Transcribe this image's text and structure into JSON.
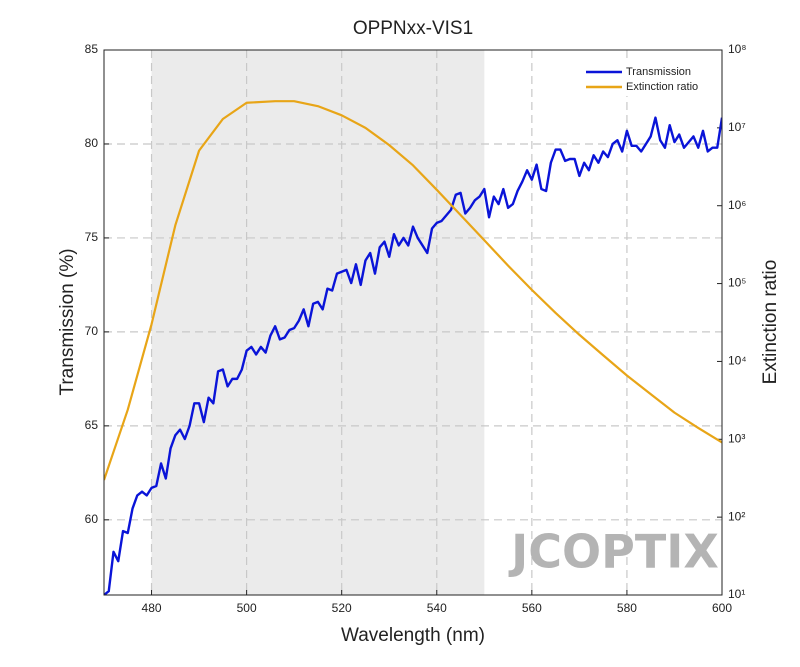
{
  "chart_data": {
    "type": "line",
    "title": "OPPNxx-VIS1",
    "x_label": "Wavelength (nm)",
    "y_label": "Transmission (%)",
    "y2_label": "Extinction ratio",
    "watermark": "JCOPTIX",
    "xlim": [
      470,
      600
    ],
    "xticks": [
      480,
      500,
      520,
      540,
      560,
      580,
      600
    ],
    "ylim": [
      56,
      85
    ],
    "yticks": [
      60,
      65,
      70,
      75,
      80,
      85
    ],
    "y2lim": [
      10,
      100000000
    ],
    "y2log": true,
    "y2ticks": [
      {
        "value": 10,
        "label": "10¹"
      },
      {
        "value": 100,
        "label": "10²"
      },
      {
        "value": 1000,
        "label": "10³"
      },
      {
        "value": 10000,
        "label": "10⁴"
      },
      {
        "value": 100000,
        "label": "10⁵"
      },
      {
        "value": 1000000,
        "label": "10⁶"
      },
      {
        "value": 10000000,
        "label": "10⁷"
      },
      {
        "value": 100000000,
        "label": "10⁸"
      }
    ],
    "grid": true,
    "legend": "upper right",
    "shade": [
      480,
      550
    ],
    "series": [
      {
        "name": "Transmission",
        "color": "#0a14d8",
        "x": [
          470,
          471,
          472,
          473,
          474,
          475,
          476,
          477,
          478,
          479,
          480,
          481,
          482,
          483,
          484,
          485,
          486,
          487,
          488,
          489,
          490,
          491,
          492,
          493,
          494,
          495,
          496,
          497,
          498,
          499,
          500,
          501,
          502,
          503,
          504,
          505,
          506,
          507,
          508,
          509,
          510,
          511,
          512,
          513,
          514,
          515,
          516,
          517,
          518,
          519,
          520,
          521,
          522,
          523,
          524,
          525,
          526,
          527,
          528,
          529,
          530,
          531,
          532,
          533,
          534,
          535,
          536,
          537,
          538,
          539,
          540,
          541,
          542,
          543,
          544,
          545,
          546,
          547,
          548,
          549,
          550,
          551,
          552,
          553,
          554,
          555,
          556,
          557,
          558,
          559,
          560,
          561,
          562,
          563,
          564,
          565,
          566,
          567,
          568,
          569,
          570,
          571,
          572,
          573,
          574,
          575,
          576,
          577,
          578,
          579,
          580,
          581,
          582,
          583,
          584,
          585,
          586,
          587,
          588,
          589,
          590,
          591,
          592,
          593,
          594,
          595,
          596,
          597,
          598,
          599,
          600
        ],
        "values": [
          56.0,
          56.2,
          58.3,
          57.8,
          59.4,
          59.3,
          60.6,
          61.3,
          61.5,
          61.3,
          61.7,
          61.8,
          63.0,
          62.2,
          63.8,
          64.5,
          64.8,
          64.3,
          65.0,
          66.2,
          66.2,
          65.2,
          66.5,
          66.2,
          67.9,
          68.0,
          67.1,
          67.5,
          67.5,
          68.0,
          69.0,
          69.2,
          68.8,
          69.2,
          68.9,
          69.8,
          70.3,
          69.6,
          69.7,
          70.1,
          70.2,
          70.6,
          71.2,
          70.3,
          71.5,
          71.6,
          71.2,
          72.3,
          72.2,
          73.1,
          73.2,
          73.3,
          72.6,
          73.6,
          72.5,
          73.8,
          74.2,
          73.1,
          74.5,
          74.8,
          74.0,
          75.2,
          74.6,
          75.0,
          74.6,
          75.6,
          75.0,
          74.6,
          74.2,
          75.5,
          75.8,
          75.9,
          76.2,
          76.5,
          77.3,
          77.4,
          76.3,
          76.6,
          77.0,
          77.2,
          77.6,
          76.1,
          77.2,
          76.8,
          77.6,
          76.6,
          76.8,
          77.5,
          78.0,
          78.6,
          78.1,
          78.9,
          77.6,
          77.5,
          79.0,
          79.7,
          79.7,
          79.1,
          79.2,
          79.2,
          78.3,
          79.0,
          78.6,
          79.4,
          79.0,
          79.6,
          79.3,
          80.0,
          80.2,
          79.6,
          80.7,
          79.9,
          79.9,
          79.6,
          80.0,
          80.4,
          81.4,
          80.2,
          79.8,
          81.0,
          80.1,
          80.5,
          79.8,
          80.1,
          80.4,
          79.8,
          80.7,
          79.6,
          79.8,
          79.8,
          81.4
        ]
      },
      {
        "name": "Extinction ratio",
        "color": "#e8a517",
        "axis": "y2",
        "x": [
          470,
          475,
          480,
          485,
          490,
          495,
          500,
          506,
          510,
          515,
          520,
          525,
          530,
          535,
          540,
          545,
          550,
          555,
          560,
          565,
          570,
          575,
          580,
          585,
          590,
          595,
          600
        ],
        "values": [
          300,
          2400,
          30000,
          560000,
          5100000,
          13000000,
          21000000,
          22000000,
          22000000,
          19000000,
          14500000,
          10000000,
          6000000,
          3300000,
          1600000,
          760000,
          360000,
          170000,
          83000,
          42000,
          22000,
          12000,
          6600,
          3800,
          2200,
          1400,
          910
        ]
      }
    ]
  }
}
